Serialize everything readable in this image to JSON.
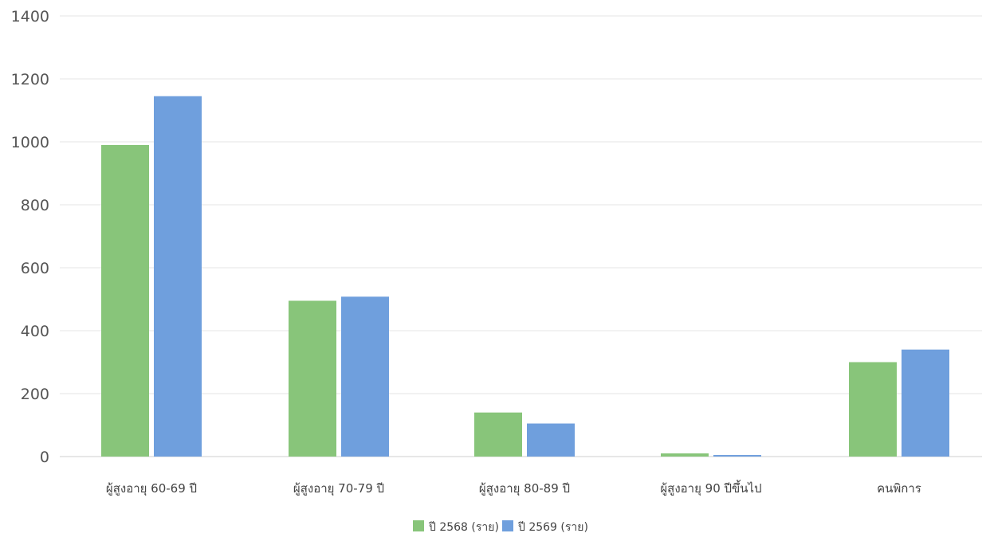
{
  "chart_data": {
    "type": "bar",
    "title": "",
    "xlabel": "",
    "ylabel": "",
    "categories": [
      "ผู้สูงอายุ 60-69 ปี",
      "ผู้สูงอายุ 70-79 ปี",
      "ผู้สูงอายุ 80-89 ปี",
      "ผู้สูงอายุ 90 ปีขึ้นไป",
      "คนพิการ"
    ],
    "series": [
      {
        "name": "ปี 2568 (ราย)",
        "color": "#88c57a",
        "values": [
          990,
          495,
          140,
          10,
          300
        ]
      },
      {
        "name": "ปี 2569 (ราย)",
        "color": "#6f9fdd",
        "values": [
          1145,
          508,
          105,
          5,
          340
        ]
      }
    ],
    "ylim": [
      0,
      1400
    ],
    "yticks": [
      0,
      200,
      400,
      600,
      800,
      1000,
      1200,
      1400
    ],
    "grid": true,
    "legend_position": "bottom-center"
  }
}
